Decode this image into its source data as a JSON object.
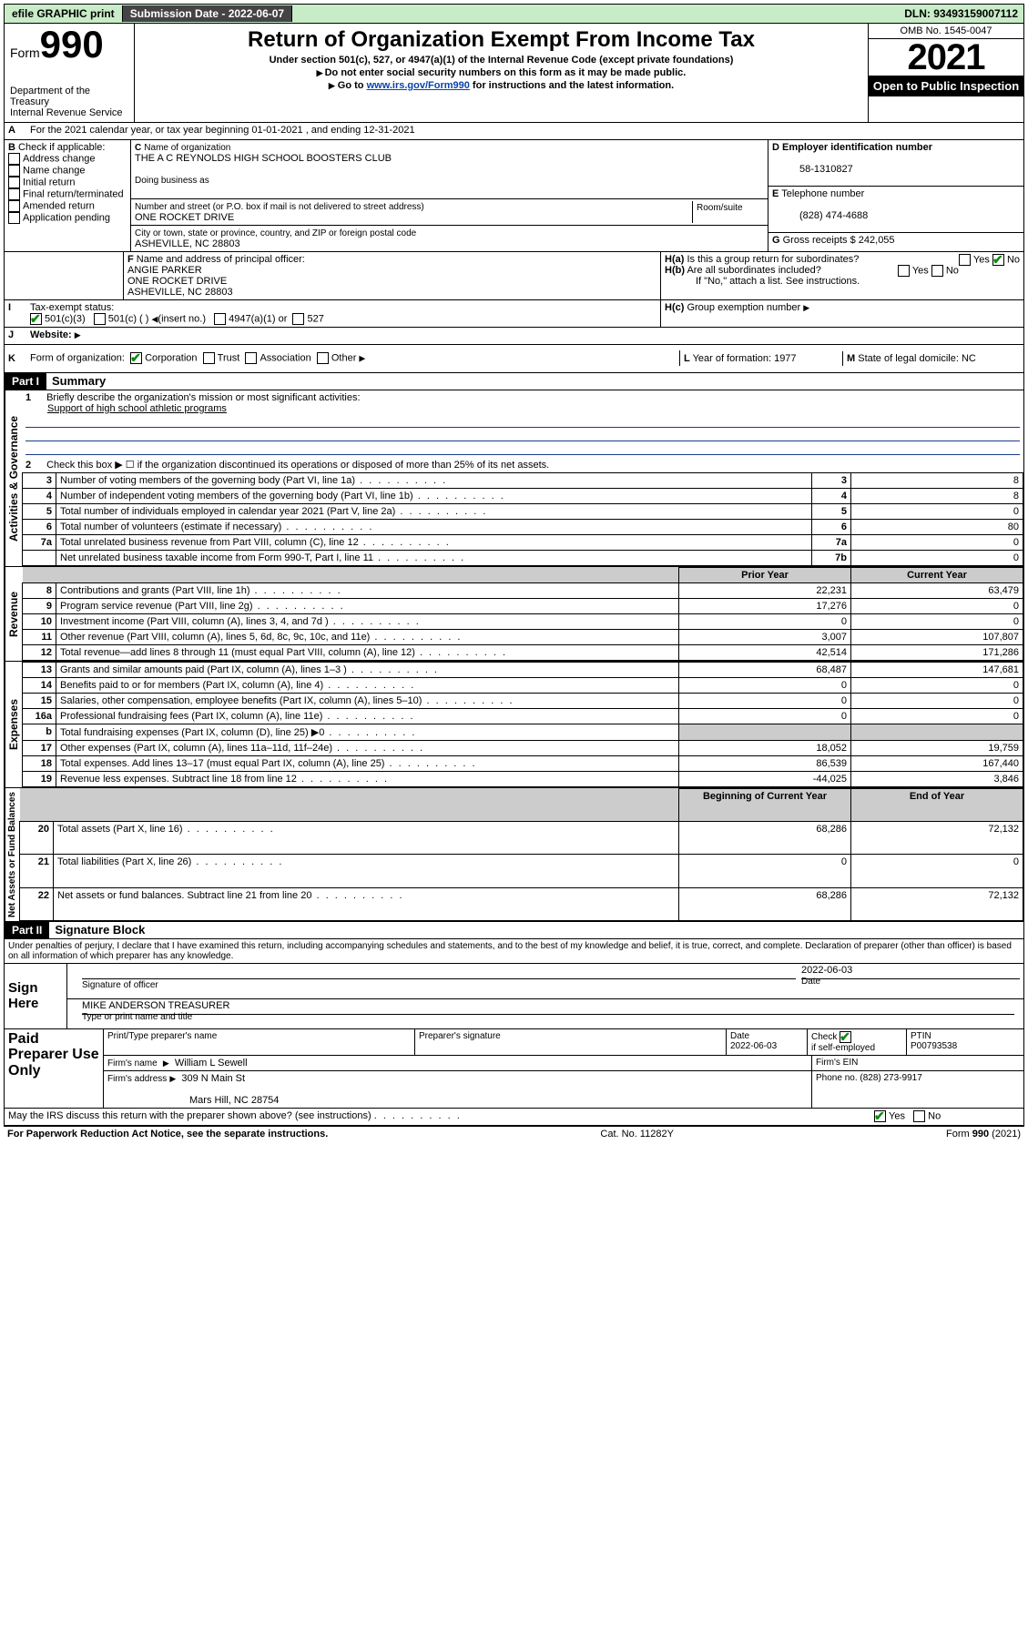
{
  "topbar": {
    "efile": "efile GRAPHIC print",
    "submission_label": "Submission Date - 2022-06-07",
    "dln": "DLN: 93493159007112"
  },
  "header": {
    "form_word": "Form",
    "form_number": "990",
    "dept": "Department of the Treasury",
    "irs": "Internal Revenue Service",
    "title": "Return of Organization Exempt From Income Tax",
    "sub1": "Under section 501(c), 527, or 4947(a)(1) of the Internal Revenue Code (except private foundations)",
    "sub2": "Do not enter social security numbers on this form as it may be made public.",
    "sub3_pre": "Go to ",
    "sub3_link": "www.irs.gov/Form990",
    "sub3_post": " for instructions and the latest information.",
    "omb": "OMB No. 1545-0047",
    "year": "2021",
    "open": "Open to Public Inspection"
  },
  "period": {
    "line": "For the 2021 calendar year, or tax year beginning 01-01-2021   , and ending 12-31-2021"
  },
  "boxB": {
    "label": "Check if applicable:",
    "items": [
      "Address change",
      "Name change",
      "Initial return",
      "Final return/terminated",
      "Amended return",
      "Application pending"
    ],
    "letter": "B"
  },
  "boxC": {
    "name_label": "Name of organization",
    "name": "THE A C REYNOLDS HIGH SCHOOL BOOSTERS CLUB",
    "dba_label": "Doing business as",
    "addr_label": "Number and street (or P.O. box if mail is not delivered to street address)",
    "room_label": "Room/suite",
    "addr": "ONE ROCKET DRIVE",
    "city_label": "City or town, state or province, country, and ZIP or foreign postal code",
    "city": "ASHEVILLE, NC  28803",
    "letter": "C"
  },
  "boxD": {
    "label": "Employer identification number",
    "ein": "58-1310827",
    "letter": "D"
  },
  "boxE": {
    "label": "Telephone number",
    "phone": "(828) 474-4688",
    "letter": "E"
  },
  "boxG": {
    "label": "Gross receipts $",
    "amount": "242,055",
    "letter": "G"
  },
  "boxF": {
    "label": "Name and address of principal officer:",
    "name": "ANGIE PARKER",
    "addr1": "ONE ROCKET DRIVE",
    "addr2": "ASHEVILLE, NC  28803",
    "letter": "F"
  },
  "boxH": {
    "a_label": "Is this a group return for subordinates?",
    "b_label": "Are all subordinates included?",
    "no_note": "If \"No,\" attach a list. See instructions.",
    "c_label": "Group exemption number",
    "letter_a": "H(a)",
    "letter_b": "H(b)",
    "letter_c": "H(c)",
    "yes": "Yes",
    "no": "No"
  },
  "boxI": {
    "label": "Tax-exempt status:",
    "c3": "501(c)(3)",
    "c_blank": "501(c) (  )",
    "insert": "(insert no.)",
    "a1": "4947(a)(1) or",
    "s527": "527",
    "letter": "I"
  },
  "boxJ": {
    "label": "Website:",
    "letter": "J"
  },
  "boxK": {
    "label": "Form of organization:",
    "corp": "Corporation",
    "trust": "Trust",
    "assoc": "Association",
    "other": "Other",
    "letter": "K"
  },
  "boxL": {
    "label": "Year of formation: 1977",
    "letter": "L"
  },
  "boxM": {
    "label": "State of legal domicile: NC",
    "letter": "M"
  },
  "part1": {
    "header": "Part I",
    "title": "Summary",
    "line1_label": "Briefly describe the organization's mission or most significant activities:",
    "line1_text": "Support of high school athletic programs",
    "line2": "Check this box ▶ ☐  if the organization discontinued its operations or disposed of more than 25% of its net assets.",
    "rows_single": [
      {
        "n": "3",
        "desc": "Number of voting members of the governing body (Part VI, line 1a)",
        "box": "3",
        "val": "8"
      },
      {
        "n": "4",
        "desc": "Number of independent voting members of the governing body (Part VI, line 1b)",
        "box": "4",
        "val": "8"
      },
      {
        "n": "5",
        "desc": "Total number of individuals employed in calendar year 2021 (Part V, line 2a)",
        "box": "5",
        "val": "0"
      },
      {
        "n": "6",
        "desc": "Total number of volunteers (estimate if necessary)",
        "box": "6",
        "val": "80"
      },
      {
        "n": "7a",
        "desc": "Total unrelated business revenue from Part VIII, column (C), line 12",
        "box": "7a",
        "val": "0"
      },
      {
        "n": "",
        "desc": "Net unrelated business taxable income from Form 990-T, Part I, line 11",
        "box": "7b",
        "val": "0"
      }
    ],
    "col_prior": "Prior Year",
    "col_current": "Current Year",
    "revenue": [
      {
        "n": "8",
        "desc": "Contributions and grants (Part VIII, line 1h)",
        "prior": "22,231",
        "curr": "63,479"
      },
      {
        "n": "9",
        "desc": "Program service revenue (Part VIII, line 2g)",
        "prior": "17,276",
        "curr": "0"
      },
      {
        "n": "10",
        "desc": "Investment income (Part VIII, column (A), lines 3, 4, and 7d )",
        "prior": "0",
        "curr": "0"
      },
      {
        "n": "11",
        "desc": "Other revenue (Part VIII, column (A), lines 5, 6d, 8c, 9c, 10c, and 11e)",
        "prior": "3,007",
        "curr": "107,807"
      },
      {
        "n": "12",
        "desc": "Total revenue—add lines 8 through 11 (must equal Part VIII, column (A), line 12)",
        "prior": "42,514",
        "curr": "171,286"
      }
    ],
    "expenses": [
      {
        "n": "13",
        "desc": "Grants and similar amounts paid (Part IX, column (A), lines 1–3 )",
        "prior": "68,487",
        "curr": "147,681"
      },
      {
        "n": "14",
        "desc": "Benefits paid to or for members (Part IX, column (A), line 4)",
        "prior": "0",
        "curr": "0"
      },
      {
        "n": "15",
        "desc": "Salaries, other compensation, employee benefits (Part IX, column (A), lines 5–10)",
        "prior": "0",
        "curr": "0"
      },
      {
        "n": "16a",
        "desc": "Professional fundraising fees (Part IX, column (A), line 11e)",
        "prior": "0",
        "curr": "0"
      },
      {
        "n": "b",
        "desc": "Total fundraising expenses (Part IX, column (D), line 25) ▶0",
        "prior": "",
        "curr": "",
        "gray": true
      },
      {
        "n": "17",
        "desc": "Other expenses (Part IX, column (A), lines 11a–11d, 11f–24e)",
        "prior": "18,052",
        "curr": "19,759"
      },
      {
        "n": "18",
        "desc": "Total expenses. Add lines 13–17 (must equal Part IX, column (A), line 25)",
        "prior": "86,539",
        "curr": "167,440"
      },
      {
        "n": "19",
        "desc": "Revenue less expenses. Subtract line 18 from line 12",
        "prior": "-44,025",
        "curr": "3,846"
      }
    ],
    "col_boy": "Beginning of Current Year",
    "col_eoy": "End of Year",
    "netassets": [
      {
        "n": "20",
        "desc": "Total assets (Part X, line 16)",
        "prior": "68,286",
        "curr": "72,132"
      },
      {
        "n": "21",
        "desc": "Total liabilities (Part X, line 26)",
        "prior": "0",
        "curr": "0"
      },
      {
        "n": "22",
        "desc": "Net assets or fund balances. Subtract line 21 from line 20",
        "prior": "68,286",
        "curr": "72,132"
      }
    ],
    "vert_gov": "Activities & Governance",
    "vert_rev": "Revenue",
    "vert_exp": "Expenses",
    "vert_net": "Net Assets or Fund Balances"
  },
  "part2": {
    "header": "Part II",
    "title": "Signature Block",
    "perjury": "Under penalties of perjury, I declare that I have examined this return, including accompanying schedules and statements, and to the best of my knowledge and belief, it is true, correct, and complete. Declaration of preparer (other than officer) is based on all information of which preparer has any knowledge.",
    "sign_here": "Sign Here",
    "sig_officer": "Signature of officer",
    "date_label": "Date",
    "sig_date": "2022-06-03",
    "officer_name": "MIKE ANDERSON TREASURER",
    "type_name": "Type or print name and title",
    "paid": "Paid Preparer Use Only",
    "prep_name_label": "Print/Type preparer's name",
    "prep_sig_label": "Preparer's signature",
    "prep_date_label": "Date",
    "prep_date": "2022-06-03",
    "check_if": "Check",
    "self_emp": "if self-employed",
    "ptin_label": "PTIN",
    "ptin": "P00793538",
    "firm_name_label": "Firm's name",
    "firm_name": "William L Sewell",
    "firm_ein_label": "Firm's EIN",
    "firm_addr_label": "Firm's address",
    "firm_addr1": "309 N Main St",
    "firm_addr2": "Mars Hill, NC  28754",
    "phone_label": "Phone no. (828) 273-9917",
    "discuss": "May the IRS discuss this return with the preparer shown above? (see instructions)",
    "yes": "Yes",
    "no": "No"
  },
  "footer": {
    "left": "For Paperwork Reduction Act Notice, see the separate instructions.",
    "mid": "Cat. No. 11282Y",
    "right_pre": "Form ",
    "right_form": "990",
    "right_post": " (2021)"
  },
  "line_numbers": {
    "one": "1",
    "two": "2",
    "b": "b"
  }
}
